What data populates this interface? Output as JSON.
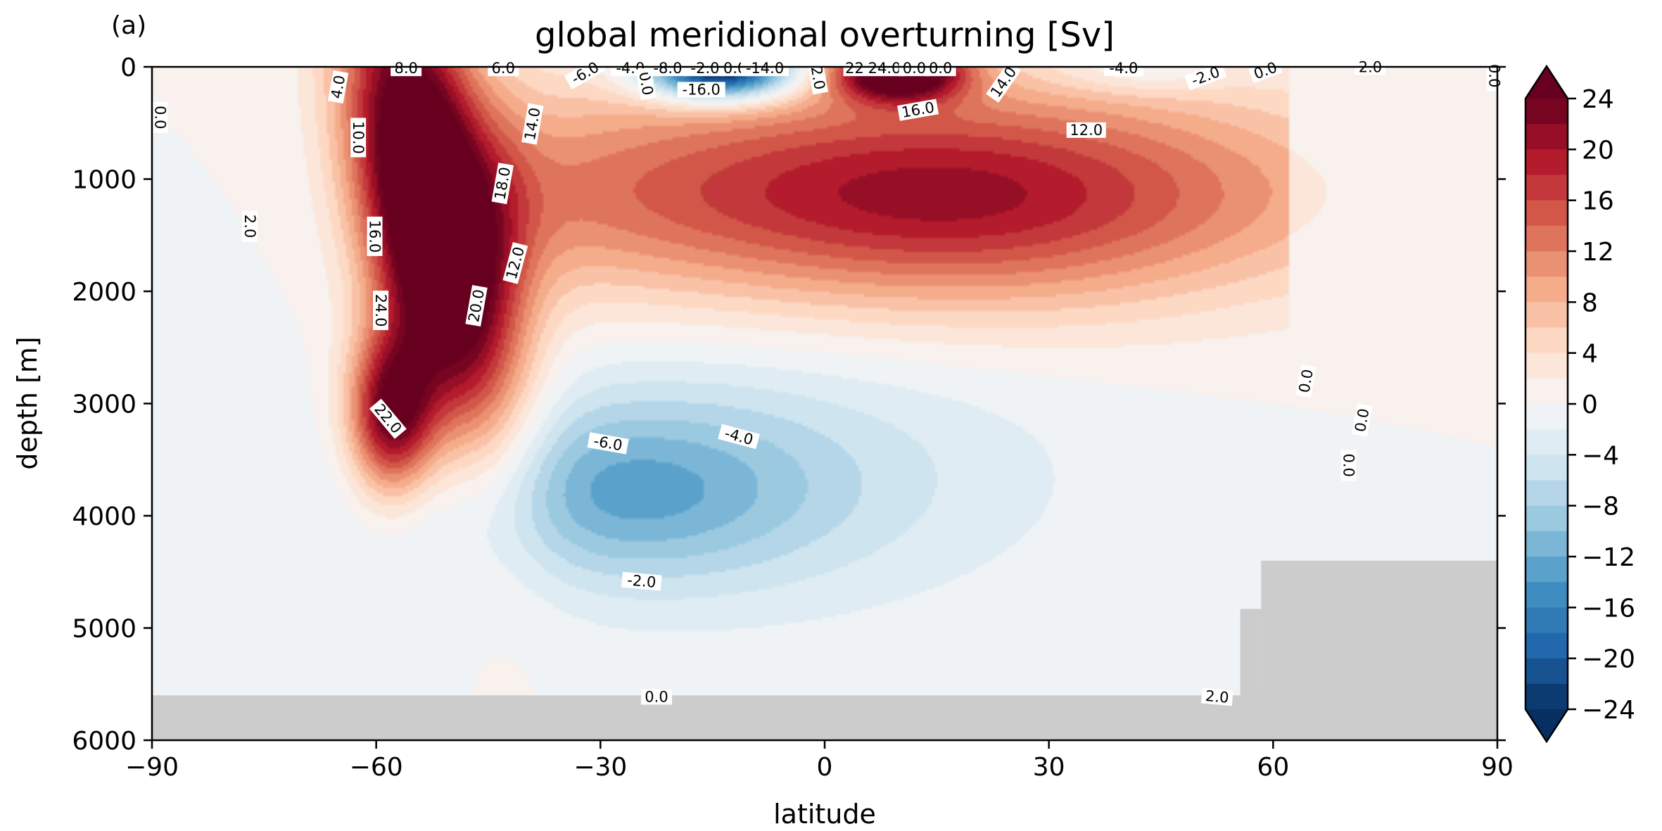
{
  "panel_label": "(a)",
  "chart_data": {
    "type": "heatmap",
    "subtype": "filled-contour",
    "title": "global meridional overturning [Sv]",
    "xlabel": "latitude",
    "ylabel": "depth [m]",
    "xlim": [
      -90,
      90
    ],
    "ylim": [
      6000,
      0
    ],
    "y_inverted": true,
    "x_ticks": [
      "−90",
      "−60",
      "−30",
      "0",
      "30",
      "60",
      "90"
    ],
    "x_tick_values": [
      -90,
      -60,
      -30,
      0,
      30,
      60,
      90
    ],
    "y_ticks": [
      "0",
      "1000",
      "2000",
      "3000",
      "4000",
      "5000",
      "6000"
    ],
    "y_tick_values": [
      0,
      1000,
      2000,
      3000,
      4000,
      5000,
      6000
    ],
    "colormap": "RdBu_r",
    "vmin": -24,
    "vmax": 24,
    "contour_step": 2,
    "extend": "both",
    "colorbar_ticks": [
      "24",
      "20",
      "16",
      "12",
      "8",
      "4",
      "0",
      "−4",
      "−8",
      "−12",
      "−16",
      "−20",
      "−24"
    ],
    "colorbar_tick_values": [
      24,
      20,
      16,
      12,
      8,
      4,
      0,
      -4,
      -8,
      -12,
      -16,
      -20,
      -24
    ],
    "bathymetry_color": "#cccccc",
    "bathymetry": [
      {
        "from_lat": -90,
        "to_lat": 90,
        "top_depth": 5600
      },
      {
        "from_lat": 55.6,
        "to_lat": 58.4,
        "top_depth": 4830
      },
      {
        "from_lat": 58.4,
        "to_lat": 90,
        "top_depth": 4400
      }
    ],
    "contour_labels": [
      {
        "text": "0.0",
        "lat": -89,
        "depth": 450,
        "rot": 90
      },
      {
        "text": "4.0",
        "lat": -65,
        "depth": 180,
        "rot": -80
      },
      {
        "text": "8.0",
        "lat": -56,
        "depth": 20,
        "rot": 0
      },
      {
        "text": "6.0",
        "lat": -43,
        "depth": 20,
        "rot": 0
      },
      {
        "text": "10.0",
        "lat": -62.5,
        "depth": 630,
        "rot": 90
      },
      {
        "text": "2.0",
        "lat": -77,
        "depth": 1420,
        "rot": 90
      },
      {
        "text": "14.0",
        "lat": -39,
        "depth": 510,
        "rot": -80
      },
      {
        "text": "18.0",
        "lat": -43,
        "depth": 1040,
        "rot": -80
      },
      {
        "text": "16.0",
        "lat": -60.3,
        "depth": 1510,
        "rot": 90
      },
      {
        "text": "12.0",
        "lat": -41.3,
        "depth": 1750,
        "rot": -75
      },
      {
        "text": "20.0",
        "lat": -46.5,
        "depth": 2130,
        "rot": -80
      },
      {
        "text": "24.0",
        "lat": -59.5,
        "depth": 2170,
        "rot": 90
      },
      {
        "text": "22.0",
        "lat": -58.5,
        "depth": 3140,
        "rot": 50
      },
      {
        "text": "-6.0",
        "lat": -32,
        "depth": 60,
        "rot": -30
      },
      {
        "text": "-4.0",
        "lat": -26,
        "depth": 20,
        "rot": 0
      },
      {
        "text": "0.0",
        "lat": -24,
        "depth": 150,
        "rot": 80
      },
      {
        "text": "-8.0",
        "lat": -21,
        "depth": 20,
        "rot": 0
      },
      {
        "text": "-2.0",
        "lat": -16,
        "depth": 20,
        "rot": 0
      },
      {
        "text": "0.0",
        "lat": -12,
        "depth": 20,
        "rot": 0
      },
      {
        "text": "-14.0",
        "lat": -8,
        "depth": 20,
        "rot": 0
      },
      {
        "text": "-16.0",
        "lat": -16.5,
        "depth": 210,
        "rot": 0
      },
      {
        "text": "2.0",
        "lat": -1,
        "depth": 100,
        "rot": 80
      },
      {
        "text": "22",
        "lat": 4,
        "depth": 20,
        "rot": 0
      },
      {
        "text": "24.0",
        "lat": 8,
        "depth": 20,
        "rot": 0
      },
      {
        "text": "0.0",
        "lat": 12,
        "depth": 20,
        "rot": 0
      },
      {
        "text": "0.0",
        "lat": 15.5,
        "depth": 20,
        "rot": 0
      },
      {
        "text": "16.0",
        "lat": 12.5,
        "depth": 390,
        "rot": -10
      },
      {
        "text": "14.0",
        "lat": 24,
        "depth": 140,
        "rot": -55
      },
      {
        "text": "12.0",
        "lat": 35,
        "depth": 570,
        "rot": 0
      },
      {
        "text": "-4.0",
        "lat": 40,
        "depth": 20,
        "rot": 0
      },
      {
        "text": "-2.0",
        "lat": 51,
        "depth": 90,
        "rot": -20
      },
      {
        "text": "0.0",
        "lat": 59,
        "depth": 40,
        "rot": -20
      },
      {
        "text": "2.0",
        "lat": 73,
        "depth": 10,
        "rot": 0
      },
      {
        "text": "0.0",
        "lat": 89.5,
        "depth": 80,
        "rot": 90
      },
      {
        "text": "0.0",
        "lat": 64.5,
        "depth": 2800,
        "rot": -80
      },
      {
        "text": "0.0",
        "lat": 72,
        "depth": 3150,
        "rot": -80
      },
      {
        "text": "0.0",
        "lat": 70,
        "depth": 3550,
        "rot": 90
      },
      {
        "text": "-6.0",
        "lat": -29,
        "depth": 3360,
        "rot": 10
      },
      {
        "text": "-4.0",
        "lat": -11.5,
        "depth": 3300,
        "rot": 15
      },
      {
        "text": "-2.0",
        "lat": -24.5,
        "depth": 4590,
        "rot": 5
      },
      {
        "text": "0.0",
        "lat": -22.5,
        "depth": 5620,
        "rot": 0
      },
      {
        "text": "2.0",
        "lat": 52.5,
        "depth": 5620,
        "rot": 5
      }
    ]
  }
}
